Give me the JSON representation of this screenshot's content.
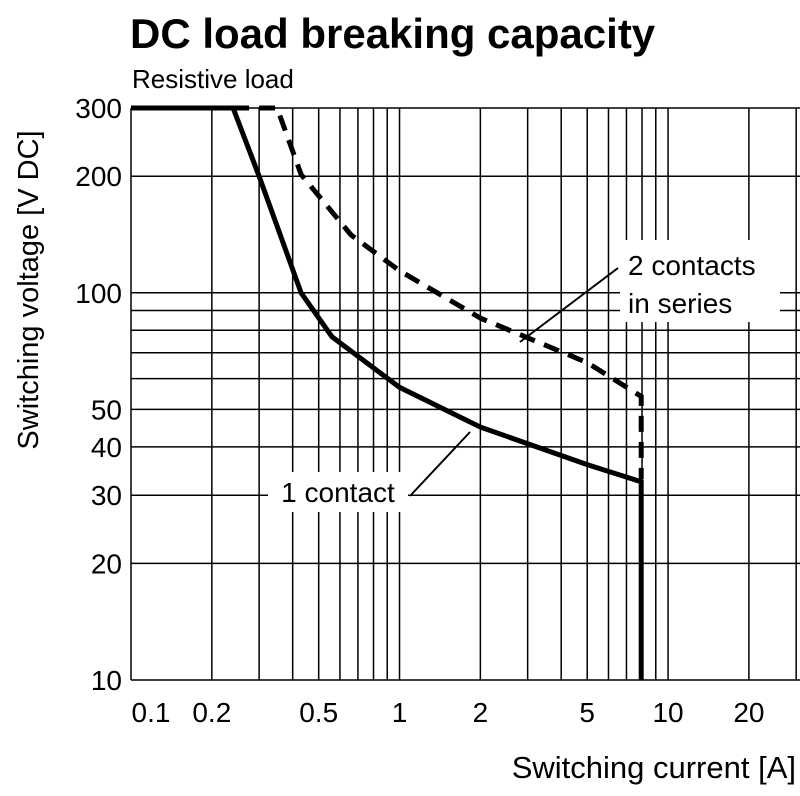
{
  "chart_data": {
    "type": "line",
    "title": "DC load breaking capacity",
    "subtitle": "Resistive load",
    "x_label": "Switching current [A]",
    "y_label": "Switching voltage [V DC]",
    "log_x": true,
    "log_y": true,
    "grid": true,
    "xlim": [
      0.1,
      31
    ],
    "ylim": [
      10,
      300
    ],
    "xticks": [
      0.1,
      0.2,
      0.5,
      1,
      2,
      5,
      10,
      20
    ],
    "xminor": [
      0.3,
      0.4,
      0.6,
      0.7,
      0.8,
      0.9,
      3,
      4,
      6,
      7,
      8,
      9,
      30
    ],
    "yticks": [
      10,
      20,
      30,
      40,
      50,
      100,
      200,
      300
    ],
    "yminor": [
      60,
      70,
      80,
      90
    ],
    "series": [
      {
        "name": "1 contact",
        "color": "#000000",
        "dash": false,
        "x": [
          0.1,
          0.24,
          0.3,
          0.43,
          0.56,
          1,
          2,
          5,
          7.94,
          7.94
        ],
        "values": [
          300,
          300,
          200,
          100,
          77,
          57,
          45,
          36,
          32.5,
          10
        ]
      },
      {
        "name": "2 contacts in series",
        "color": "#000000",
        "dash": true,
        "x": [
          0.24,
          0.35,
          0.43,
          0.66,
          1,
          2,
          5,
          7.94,
          7.94
        ],
        "values": [
          300,
          300,
          202,
          141,
          114,
          86,
          66,
          54,
          33
        ]
      }
    ],
    "annotations": [
      "1 contact",
      "2 contacts",
      "in series"
    ]
  }
}
